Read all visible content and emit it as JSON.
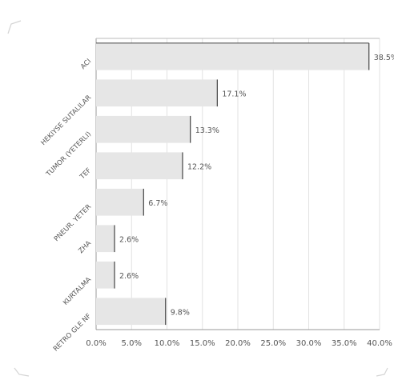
{
  "chart_data": {
    "type": "bar",
    "orientation": "horizontal",
    "categories": [
      "ACI",
      "HEKIYSE SUTALILAR",
      "TUMOR (YETERLI)",
      "TEF",
      "PNEUR. YETER",
      "ZHA",
      "KURTALMA",
      "RETRO GLE NF"
    ],
    "values": [
      38.5,
      17.1,
      13.3,
      12.2,
      6.7,
      2.6,
      2.6,
      9.8
    ],
    "data_labels": [
      "38.5%",
      "17.1%",
      "13.3%",
      "12.2%",
      "6.7%",
      "2.6%",
      "2.6%",
      "9.8%"
    ],
    "title": "",
    "xlabel": "",
    "ylabel": "",
    "xlim": [
      0,
      40
    ],
    "x_ticks": [
      "0.0%",
      "5.0%",
      "10.0%",
      "15.0%",
      "20.0%",
      "25.0%",
      "30.0%",
      "35.0%",
      "40.0%"
    ],
    "grid": "vertical",
    "legend": "none",
    "colors": {
      "bar_fill": "#e6e6e6",
      "bar_edge": "#444444",
      "grid": "#e2e2e2",
      "axis": "#999999",
      "text": "#555555"
    }
  }
}
